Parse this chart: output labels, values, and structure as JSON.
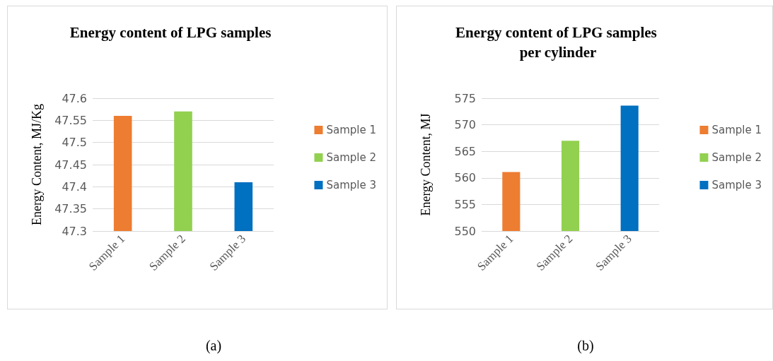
{
  "chart_data": [
    {
      "type": "bar",
      "title": "Energy content of LPG samples",
      "ylabel": "Energy Content, MJ/Kg",
      "categories": [
        "Sample 1",
        "Sample 2",
        "Sample 3"
      ],
      "series": [
        {
          "name": "Sample 1",
          "color": "#ed7d31",
          "values": [
            47.56,
            null,
            null
          ]
        },
        {
          "name": "Sample 2",
          "color": "#92d050",
          "values": [
            null,
            47.57,
            null
          ]
        },
        {
          "name": "Sample 3",
          "color": "#0070c0",
          "values": [
            null,
            null,
            47.41
          ]
        }
      ],
      "ylim": [
        47.3,
        47.6
      ],
      "yticks": [
        47.3,
        47.35,
        47.4,
        47.45,
        47.5,
        47.55,
        47.6
      ],
      "grid": "y",
      "legend": "right",
      "annotations": [
        "(a)"
      ]
    },
    {
      "type": "bar",
      "title": "Energy content of LPG samples per cylinder",
      "ylabel": "Energy Content, MJ",
      "categories": [
        "Sample 1",
        "Sample 2",
        "Sample 3"
      ],
      "series": [
        {
          "name": "Sample 1",
          "color": "#ed7d31",
          "values": [
            561.1,
            null,
            null
          ]
        },
        {
          "name": "Sample 2",
          "color": "#92d050",
          "values": [
            null,
            567,
            null
          ]
        },
        {
          "name": "Sample 3",
          "color": "#0070c0",
          "values": [
            null,
            null,
            573.6
          ]
        }
      ],
      "ylim": [
        550,
        575
      ],
      "yticks": [
        550,
        555,
        560,
        565,
        570,
        575
      ],
      "grid": "y",
      "legend": "right",
      "annotations": [
        "(b)"
      ]
    }
  ]
}
